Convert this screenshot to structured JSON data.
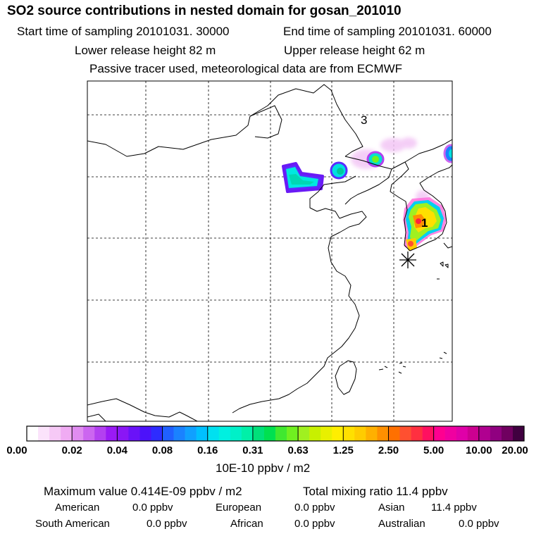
{
  "header": {
    "title": "SO2 source contributions in nested domain for gosan_201010",
    "start_time": "Start time of sampling 20101031. 30000",
    "end_time": "End time of sampling 20101031. 60000",
    "lower_release": "Lower release height   82 m",
    "upper_release": "Upper release height   62 m",
    "tracer_note": "Passive tracer used, meteorological data are from ECMWF"
  },
  "map": {
    "source_labels": [
      "3",
      "1"
    ],
    "receptor_marker": "gosan-receptor-star"
  },
  "colorbar": {
    "labels": [
      "0.00",
      "0.02",
      "0.04",
      "0.08",
      "0.16",
      "0.31",
      "0.63",
      "1.25",
      "2.50",
      "5.00",
      "10.00",
      "20.00"
    ],
    "colors": [
      "#ffffff",
      "#fbe3fb",
      "#f6c9f6",
      "#f0abf3",
      "#e08cf0",
      "#cc66f0",
      "#b340f0",
      "#9a1af5",
      "#8a16f5",
      "#6a12f8",
      "#4c12fa",
      "#2e2cff",
      "#2060ff",
      "#1a82ff",
      "#10a0ff",
      "#00c0ff",
      "#00e0f0",
      "#00f0e0",
      "#00f0c8",
      "#00f0a8",
      "#00e07a",
      "#00e050",
      "#40e830",
      "#70f020",
      "#a0f020",
      "#c8f000",
      "#e8f000",
      "#ffee00",
      "#ffe000",
      "#ffcc00",
      "#ffb000",
      "#ff9000",
      "#ff7000",
      "#ff5030",
      "#ff3040",
      "#ff1060",
      "#ff0090",
      "#f000a0",
      "#e000a8",
      "#cc0090",
      "#b00090",
      "#900080",
      "#700060",
      "#400040"
    ],
    "unit": "10E-10 ppbv / m2"
  },
  "summary": {
    "max_value": "Maximum value  0.414E-09 ppbv / m2",
    "total_mixing": "Total mixing ratio      11.4 ppbv",
    "american_label": "American",
    "american_value": "0.0 ppbv",
    "european_label": "European",
    "european_value": "0.0 ppbv",
    "asian_label": "Asian",
    "asian_value": "11.4 ppbv",
    "south_american_label": "South American",
    "south_american_value": "0.0 ppbv",
    "african_label": "African",
    "african_value": "0.0 ppbv",
    "australian_label": "Australian",
    "australian_value": "0.0 ppbv"
  }
}
